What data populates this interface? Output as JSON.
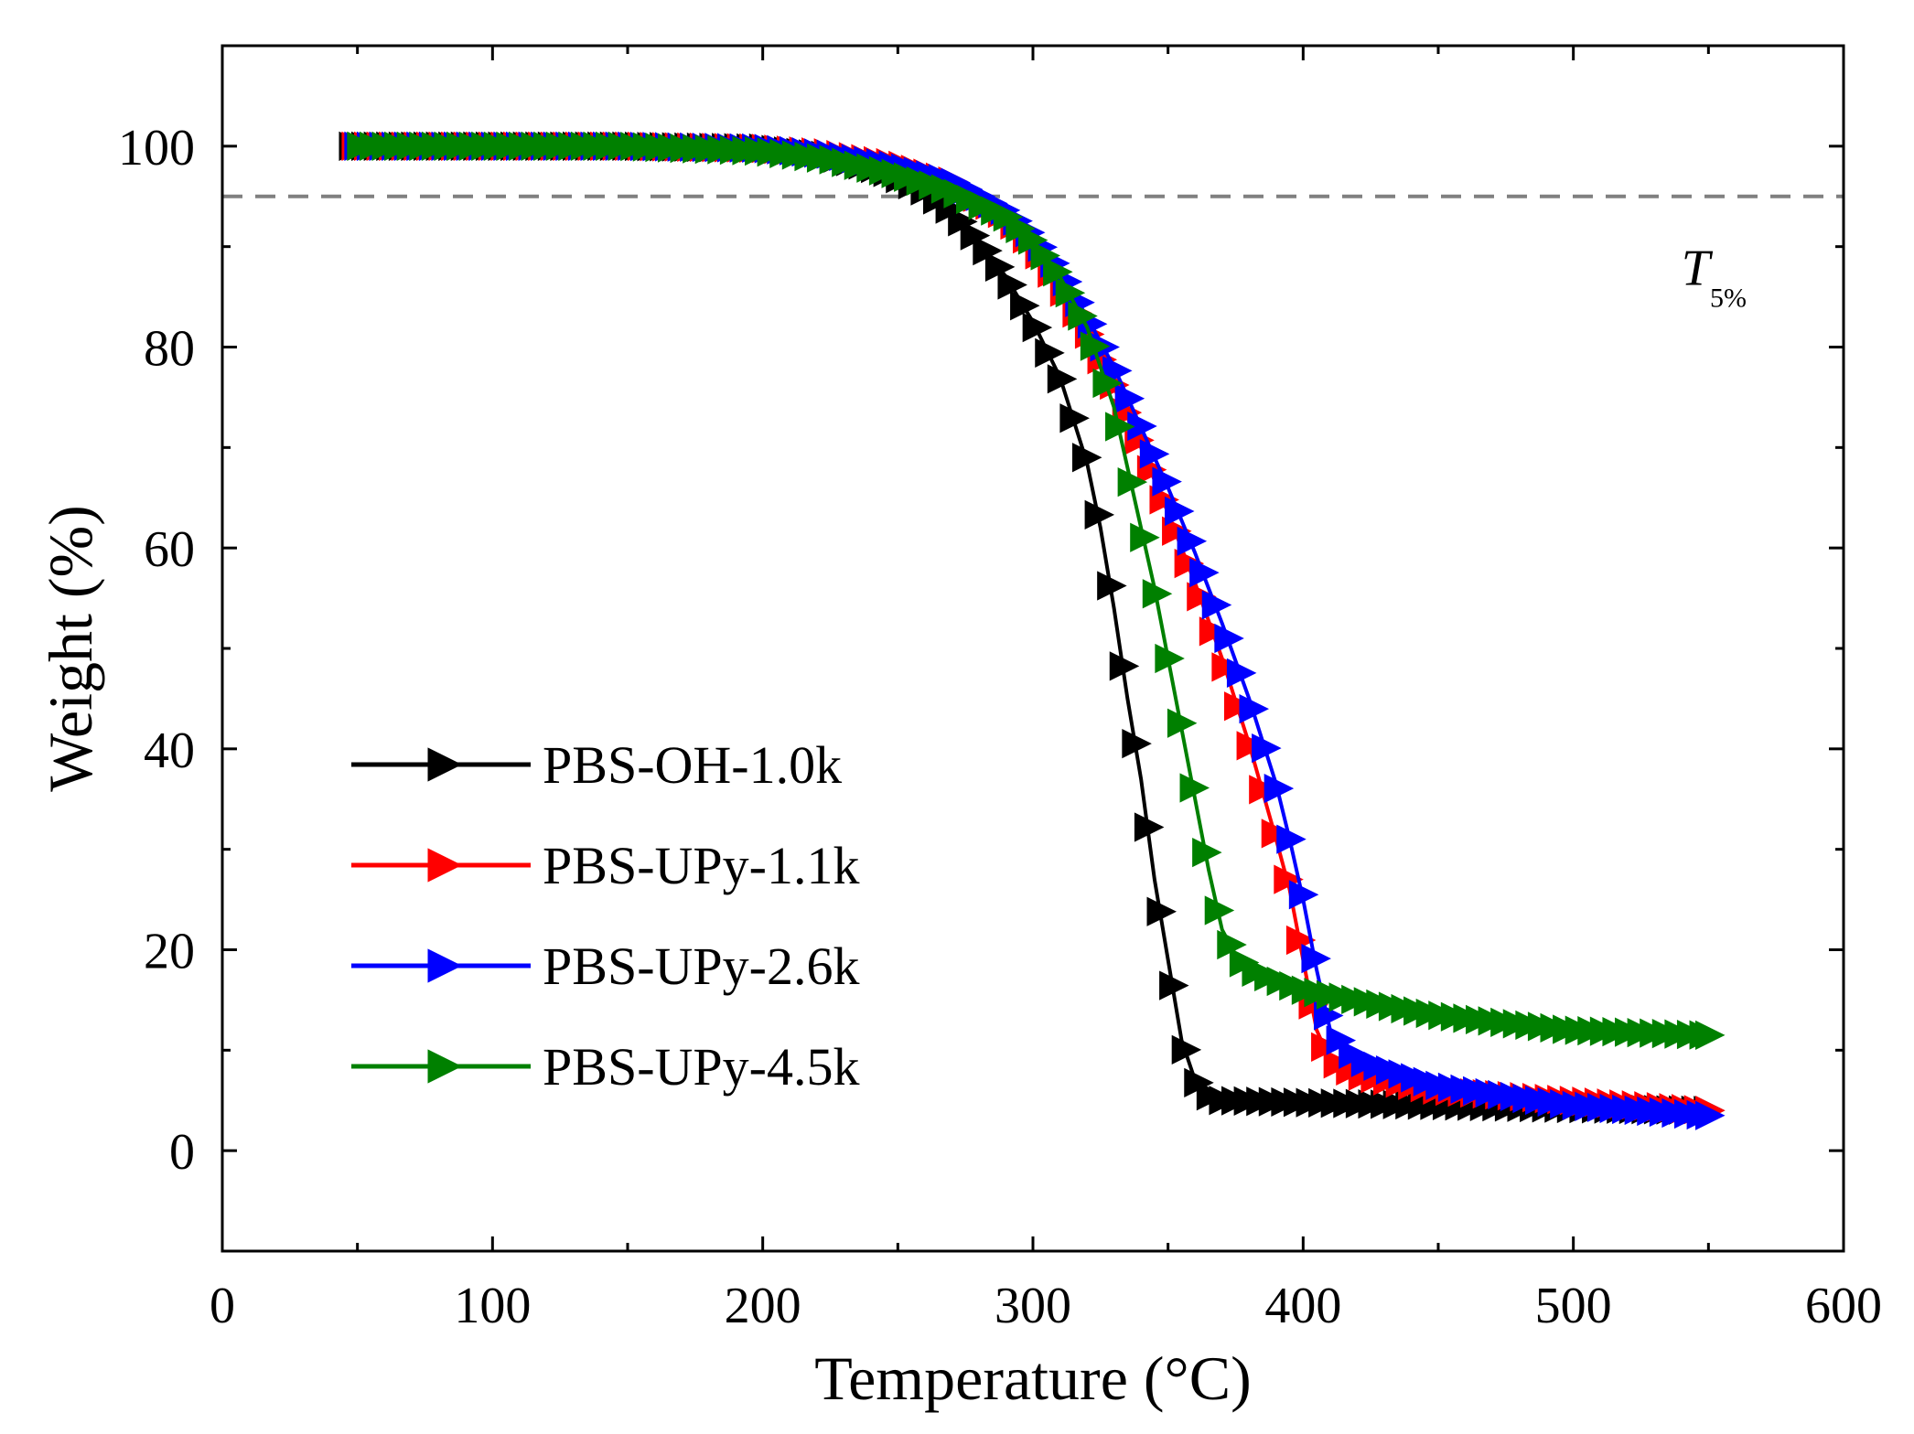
{
  "chart_data": {
    "type": "line",
    "xlabel": "Temperature (°C)",
    "ylabel": "Weight (%)",
    "xlim": [
      0,
      600
    ],
    "ylim": [
      -10,
      110
    ],
    "xticks": [
      0,
      100,
      200,
      300,
      400,
      500,
      600
    ],
    "yticks": [
      0,
      20,
      40,
      60,
      80,
      100
    ],
    "grid": false,
    "legend_position": "lower-left",
    "reference_line": {
      "y": 95,
      "style": "dashed",
      "color": "#808080"
    },
    "annotation": {
      "main": "T",
      "sub": "5%",
      "x": 540,
      "y": 88
    },
    "series": [
      {
        "name": "PBS-OH-1.0k",
        "color": "#000000",
        "marker": "triangle-right",
        "x": [
          48,
          100,
          150,
          200,
          225,
          245,
          260,
          270,
          280,
          290,
          300,
          310,
          320,
          325,
          330,
          335,
          340,
          345,
          350,
          355,
          360,
          365,
          370,
          400,
          450,
          500,
          550
        ],
        "y": [
          100,
          100,
          100,
          99.8,
          99,
          97.5,
          95.5,
          93.5,
          90.5,
          87,
          82.5,
          77,
          68.5,
          62,
          54,
          45,
          37,
          27,
          19,
          11,
          7,
          5.5,
          5,
          4.8,
          4.5,
          4.2,
          4
        ]
      },
      {
        "name": "PBS-UPy-1.1k",
        "color": "#ff0000",
        "marker": "triangle-right",
        "x": [
          48,
          100,
          150,
          200,
          225,
          250,
          270,
          290,
          300,
          310,
          320,
          330,
          340,
          350,
          360,
          370,
          380,
          390,
          395,
          400,
          405,
          410,
          420,
          450,
          500,
          550
        ],
        "y": [
          100,
          100,
          100,
          99.8,
          99.3,
          98.2,
          96.5,
          93,
          90,
          86,
          81.5,
          76,
          70,
          63.5,
          56.5,
          49,
          40.5,
          31,
          26,
          19,
          12,
          9,
          7.5,
          6,
          5,
          4
        ]
      },
      {
        "name": "PBS-UPy-2.6k",
        "color": "#0000ff",
        "marker": "triangle-right",
        "x": [
          48,
          100,
          150,
          200,
          225,
          250,
          270,
          290,
          300,
          310,
          320,
          330,
          340,
          350,
          360,
          370,
          380,
          390,
          395,
          400,
          405,
          410,
          420,
          450,
          500,
          550
        ],
        "y": [
          100,
          100,
          100,
          99.8,
          99.2,
          98,
          96.5,
          93.5,
          91,
          87.5,
          83,
          78,
          72,
          66,
          59.5,
          52.5,
          45,
          36.5,
          31,
          25,
          18,
          12,
          9,
          6.5,
          4.5,
          3.5
        ]
      },
      {
        "name": "PBS-UPy-4.5k",
        "color": "#008000",
        "marker": "triangle-right",
        "x": [
          48,
          100,
          150,
          200,
          225,
          250,
          270,
          290,
          300,
          310,
          320,
          330,
          335,
          340,
          345,
          350,
          355,
          360,
          365,
          370,
          375,
          380,
          400,
          450,
          500,
          550
        ],
        "y": [
          100,
          100,
          100,
          99.5,
          98.7,
          97.2,
          95.5,
          93,
          90.5,
          87,
          82,
          74,
          68,
          62,
          56,
          49,
          42,
          35,
          28,
          22,
          19.5,
          18,
          16,
          13.5,
          12,
          11.5
        ]
      }
    ]
  }
}
